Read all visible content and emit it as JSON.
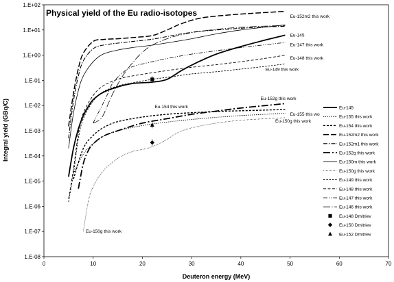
{
  "chart_data": {
    "type": "line",
    "title": "Physical yield of the Eu radio-isotopes",
    "xlabel": "Deuteron energy (MeV)",
    "ylabel": "Integral yield (GBq/C)",
    "xlim": [
      0,
      70
    ],
    "ylim": [
      1e-08,
      100
    ],
    "yscale": "log",
    "grid": false,
    "legend_position": "right",
    "x_ticks": [
      "0",
      "10",
      "20",
      "30",
      "40",
      "50",
      "60",
      "70"
    ],
    "y_ticks": [
      "1.E-08",
      "1.E-07",
      "1.E-06",
      "1.E-05",
      "1.E-04",
      "1.E-03",
      "1.E-02",
      "1.E-01",
      "1.E+00",
      "1.E+01",
      "1.E+02"
    ],
    "series": [
      {
        "name": "Eu-145",
        "style": "thick",
        "points": [
          [
            5,
            1.5e-05
          ],
          [
            6,
            0.0002
          ],
          [
            7,
            0.0012
          ],
          [
            8,
            0.004
          ],
          [
            9,
            0.009
          ],
          [
            10,
            0.017
          ],
          [
            12,
            0.033
          ],
          [
            15,
            0.055
          ],
          [
            18,
            0.075
          ],
          [
            22,
            0.085
          ],
          [
            25,
            0.11
          ],
          [
            28,
            0.25
          ],
          [
            31,
            0.5
          ],
          [
            35,
            1.1
          ],
          [
            40,
            2.2
          ],
          [
            45,
            4
          ],
          [
            49,
            6.2
          ]
        ]
      },
      {
        "name": "Eu-155 this work",
        "style": "dotted",
        "points": [
          [
            6,
            2e-05
          ],
          [
            8,
            0.00012
          ],
          [
            10,
            0.0003
          ],
          [
            12,
            0.0006
          ],
          [
            15,
            0.001
          ],
          [
            20,
            0.0016
          ],
          [
            25,
            0.0022
          ],
          [
            30,
            0.0028
          ],
          [
            35,
            0.0034
          ],
          [
            40,
            0.004
          ],
          [
            45,
            0.0045
          ],
          [
            49,
            0.005
          ]
        ]
      },
      {
        "name": "Eu-154 this work",
        "style": "shortdash",
        "points": [
          [
            6,
            1.2e-05
          ],
          [
            8,
            0.0002
          ],
          [
            10,
            0.00065
          ],
          [
            12,
            0.0013
          ],
          [
            15,
            0.0023
          ],
          [
            20,
            0.0035
          ],
          [
            25,
            0.0045
          ],
          [
            30,
            0.0052
          ],
          [
            35,
            0.0058
          ],
          [
            40,
            0.0062
          ],
          [
            45,
            0.0066
          ],
          [
            49,
            0.007
          ]
        ]
      },
      {
        "name": "Eu-152m2 this work",
        "style": "longdash",
        "points": [
          [
            5,
            0.0015
          ],
          [
            6,
            0.03
          ],
          [
            7,
            0.3
          ],
          [
            8,
            1.2
          ],
          [
            10,
            3.5
          ],
          [
            12,
            4.2
          ],
          [
            15,
            4.5
          ],
          [
            18,
            5
          ],
          [
            22,
            6
          ],
          [
            25,
            10
          ],
          [
            28,
            18
          ],
          [
            32,
            30
          ],
          [
            38,
            40
          ],
          [
            44,
            48
          ],
          [
            49,
            55
          ]
        ]
      },
      {
        "name": "Eu-152m1 this work",
        "style": "dashdot",
        "points": [
          [
            5,
            0.0005
          ],
          [
            6,
            0.015
          ],
          [
            7,
            0.15
          ],
          [
            8,
            0.6
          ],
          [
            10,
            1.8
          ],
          [
            12,
            2.5
          ],
          [
            15,
            3
          ],
          [
            18,
            3.5
          ],
          [
            22,
            4.3
          ],
          [
            25,
            5.5
          ],
          [
            28,
            7
          ],
          [
            32,
            9
          ],
          [
            38,
            11
          ],
          [
            44,
            13
          ],
          [
            49,
            14
          ]
        ]
      },
      {
        "name": "Eu-152g this work",
        "style": "longdashdot",
        "points": [
          [
            7,
            5e-06
          ],
          [
            8,
            5e-05
          ],
          [
            9,
            0.00016
          ],
          [
            10,
            0.0003
          ],
          [
            12,
            0.0006
          ],
          [
            15,
            0.001
          ],
          [
            20,
            0.002
          ],
          [
            25,
            0.003
          ],
          [
            30,
            0.0045
          ],
          [
            35,
            0.006
          ],
          [
            40,
            0.008
          ],
          [
            45,
            0.01
          ],
          [
            49,
            0.012
          ]
        ]
      },
      {
        "name": "Eu-150m this work",
        "style": "thin",
        "points": [
          [
            5,
            0.0002
          ],
          [
            6,
            0.005
          ],
          [
            7,
            0.04
          ],
          [
            8,
            0.15
          ],
          [
            10,
            0.55
          ],
          [
            12,
            1.1
          ],
          [
            15,
            1.6
          ],
          [
            18,
            2
          ],
          [
            22,
            2.5
          ],
          [
            26,
            3.3
          ],
          [
            30,
            4.5
          ],
          [
            35,
            7
          ],
          [
            40,
            10
          ],
          [
            45,
            13
          ],
          [
            49,
            16
          ]
        ]
      },
      {
        "name": "Eu-150g this work",
        "style": "finedot",
        "points": [
          [
            8,
            1e-07
          ],
          [
            9,
            1.5e-06
          ],
          [
            10,
            6e-06
          ],
          [
            12,
            2.5e-05
          ],
          [
            15,
            8e-05
          ],
          [
            18,
            0.00015
          ],
          [
            21,
            0.0002
          ],
          [
            24,
            0.00035
          ],
          [
            27,
            0.0008
          ],
          [
            30,
            0.0013
          ],
          [
            35,
            0.002
          ],
          [
            40,
            0.0026
          ],
          [
            45,
            0.003
          ],
          [
            49,
            0.0033
          ]
        ]
      },
      {
        "name": "Eu-149 this work",
        "style": "smalldash",
        "points": [
          [
            5,
            1.5e-06
          ],
          [
            6,
            2e-05
          ],
          [
            7,
            0.0005
          ],
          [
            8,
            0.003
          ],
          [
            10,
            0.015
          ],
          [
            12,
            0.035
          ],
          [
            15,
            0.06
          ],
          [
            18,
            0.08
          ],
          [
            22,
            0.11
          ],
          [
            26,
            0.14
          ],
          [
            30,
            0.18
          ],
          [
            35,
            0.22
          ],
          [
            40,
            0.28
          ],
          [
            45,
            0.36
          ],
          [
            49,
            0.45
          ]
        ]
      },
      {
        "name": "Eu-148 this work",
        "style": "dash",
        "points": [
          [
            5,
            2e-06
          ],
          [
            6,
            3e-05
          ],
          [
            7,
            0.0008
          ],
          [
            8,
            0.005
          ],
          [
            10,
            0.025
          ],
          [
            12,
            0.06
          ],
          [
            15,
            0.11
          ],
          [
            18,
            0.15
          ],
          [
            22,
            0.2
          ],
          [
            26,
            0.26
          ],
          [
            30,
            0.33
          ],
          [
            35,
            0.42
          ],
          [
            40,
            0.55
          ],
          [
            45,
            0.75
          ],
          [
            49,
            1.0
          ]
        ]
      },
      {
        "name": "Eu-147 this work",
        "style": "dashdotdot",
        "points": [
          [
            10,
            0.002
          ],
          [
            11,
            0.005
          ],
          [
            12,
            0.012
          ],
          [
            13,
            0.03
          ],
          [
            14,
            0.08
          ],
          [
            16,
            0.2
          ],
          [
            18,
            0.35
          ],
          [
            22,
            0.55
          ],
          [
            26,
            0.8
          ],
          [
            30,
            1.1
          ],
          [
            35,
            1.5
          ],
          [
            40,
            2
          ],
          [
            45,
            2.6
          ],
          [
            49,
            3.2
          ]
        ]
      },
      {
        "name": "Eu-146 this work",
        "style": "dashdotlong",
        "points": [
          [
            10,
            0.002
          ],
          [
            11,
            0.0025
          ],
          [
            12,
            0.004
          ],
          [
            14,
            0.03
          ],
          [
            16,
            0.15
          ],
          [
            18,
            0.5
          ],
          [
            20,
            1.3
          ],
          [
            22,
            2.5
          ],
          [
            25,
            4.5
          ],
          [
            28,
            6.5
          ],
          [
            32,
            9
          ],
          [
            38,
            12
          ],
          [
            44,
            14
          ],
          [
            49,
            15
          ]
        ]
      }
    ],
    "markers": [
      {
        "name": "Eu-148 Dmitriev",
        "shape": "square",
        "x": 22,
        "y": 0.11
      },
      {
        "name": "Eu-150 Dmitriev",
        "shape": "diamond",
        "x": 22,
        "y": 0.00034
      },
      {
        "name": "Eu-152 Dmitriev",
        "shape": "triangle",
        "x": 22,
        "y": 0.0017
      }
    ],
    "annotations": [
      {
        "text": "Eu-152m2 this work",
        "x": 50,
        "y": 35
      },
      {
        "text": "Eu-145",
        "x": 50,
        "y": 6.2
      },
      {
        "text": "Eu-147 this work",
        "x": 50,
        "y": 2.6
      },
      {
        "text": "Eu-148 this work",
        "x": 50,
        "y": 0.75
      },
      {
        "text": "Eu-149 this work",
        "x": 45,
        "y": 0.27
      },
      {
        "text": "Eu-152g this work",
        "x": 44,
        "y": 0.019
      },
      {
        "text": "Eu-154 this work",
        "x": 22.5,
        "y": 0.009
      },
      {
        "text": "Eu-155 this work",
        "x": 50,
        "y": 0.0045
      },
      {
        "text": "Eu-150g this work",
        "x": 47,
        "y": 0.0024
      },
      {
        "text": "Eu-150g this work",
        "x": 8.5,
        "y": 1e-07
      }
    ]
  }
}
